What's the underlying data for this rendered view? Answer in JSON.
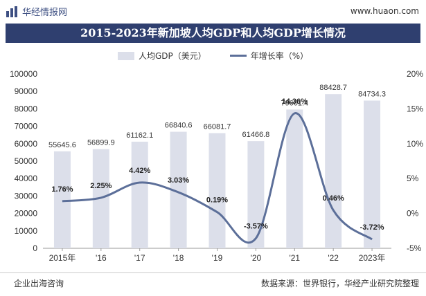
{
  "header": {
    "brand": "华经情报网",
    "url": "www.huaon.com"
  },
  "footer": {
    "left": "企业出海咨询",
    "right": "数据来源：世界银行，华经产业研究院整理"
  },
  "chart_data": {
    "type": "bar",
    "title": "2015-2023年新加坡人均GDP和人均GDP增长情况",
    "categories": [
      "2015年",
      "'16",
      "'17",
      "'18",
      "'19",
      "'20",
      "'21",
      "'22",
      "2023年"
    ],
    "series": [
      {
        "name": "人均GDP（美元）",
        "type": "bar",
        "axis": "left",
        "values": [
          55645.6,
          56899.9,
          61162.1,
          66840.6,
          66081.7,
          61466.8,
          79601.4,
          88428.7,
          84734.3
        ],
        "labels": [
          "55645.6",
          "56899.9",
          "61162.1",
          "66840.6",
          "66081.7",
          "61466.8",
          "79601.4",
          "88428.7",
          "84734.3"
        ]
      },
      {
        "name": "年增长率（%）",
        "type": "line",
        "axis": "right",
        "values": [
          1.76,
          2.25,
          4.42,
          3.03,
          0.19,
          -3.57,
          14.36,
          0.46,
          -3.72
        ],
        "labels": [
          "1.76%",
          "2.25%",
          "4.42%",
          "3.03%",
          "0.19%",
          "-3.57%",
          "14.36%",
          "0.46%",
          "-3.72%"
        ]
      }
    ],
    "left_axis": {
      "ylim": [
        0,
        100000
      ],
      "ticks": [
        "0",
        "10000",
        "20000",
        "30000",
        "40000",
        "50000",
        "60000",
        "70000",
        "80000",
        "90000",
        "100000"
      ]
    },
    "right_axis": {
      "ylim": [
        -5,
        20
      ],
      "ticks": [
        "-5%",
        "0%",
        "5%",
        "10%",
        "15%",
        "20%"
      ]
    },
    "colors": {
      "bar": "#dcdfea",
      "line": "#5c6f99",
      "title_bg": "#2f3f6f"
    },
    "legend_position": "top"
  }
}
